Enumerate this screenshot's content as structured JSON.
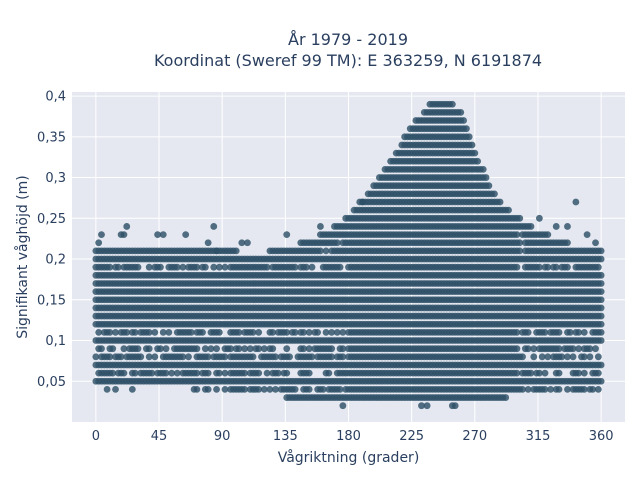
{
  "chart_data": {
    "type": "scatter",
    "title_lines": [
      "År 1979 - 2019",
      "Koordinat (Sweref 99 TM): E 363259, N 6191874"
    ],
    "xlabel": "Vågriktning (grader)",
    "ylabel": "Signifikant våghöjd (m)",
    "xlim": [
      -17,
      377
    ],
    "ylim": [
      0.0,
      0.405
    ],
    "xticks": [
      0,
      45,
      90,
      135,
      180,
      225,
      270,
      315,
      360
    ],
    "xtick_labels": [
      "0",
      "45",
      "90",
      "135",
      "180",
      "225",
      "270",
      "315",
      "360"
    ],
    "yticks": [
      0.05,
      0.1,
      0.15,
      0.2,
      0.25,
      0.3,
      0.35,
      0.4
    ],
    "ytick_labels": [
      "0,05",
      "0,1",
      "0,15",
      "0,2",
      "0,25",
      "0,3",
      "0,35",
      "0,4"
    ],
    "grid": true,
    "marker_color": "#2e5168",
    "plot_background": "#e5e8f0",
    "x_step_deg": 2,
    "y_step_m": 0.01,
    "upper_envelope": {
      "x": [
        0,
        20,
        45,
        90,
        110,
        135,
        155,
        175,
        185,
        200,
        215,
        225,
        235,
        240,
        250,
        260,
        265,
        270,
        280,
        290,
        300,
        315,
        330,
        345,
        360
      ],
      "y_max": [
        0.21,
        0.21,
        0.21,
        0.21,
        0.2,
        0.21,
        0.22,
        0.24,
        0.26,
        0.29,
        0.33,
        0.36,
        0.38,
        0.39,
        0.39,
        0.38,
        0.36,
        0.33,
        0.29,
        0.26,
        0.25,
        0.23,
        0.22,
        0.21,
        0.21
      ]
    },
    "lower_envelope": {
      "x": [
        0,
        130,
        140,
        155,
        175,
        200,
        225,
        250,
        270,
        285,
        300,
        360
      ],
      "y_min": [
        0.05,
        0.04,
        0.03,
        0.03,
        0.03,
        0.03,
        0.03,
        0.03,
        0.03,
        0.03,
        0.04,
        0.04
      ]
    },
    "sparse_rows": [
      0.04,
      0.06,
      0.08,
      0.09,
      0.11,
      0.19,
      0.21,
      0.22,
      0.23
    ],
    "outliers": [
      {
        "x": 2,
        "y": 0.22
      },
      {
        "x": 4,
        "y": 0.23
      },
      {
        "x": 8,
        "y": 0.04
      },
      {
        "x": 14,
        "y": 0.04
      },
      {
        "x": 18,
        "y": 0.23
      },
      {
        "x": 20,
        "y": 0.23
      },
      {
        "x": 22,
        "y": 0.24
      },
      {
        "x": 26,
        "y": 0.04
      },
      {
        "x": 44,
        "y": 0.23
      },
      {
        "x": 48,
        "y": 0.23
      },
      {
        "x": 64,
        "y": 0.23
      },
      {
        "x": 80,
        "y": 0.22
      },
      {
        "x": 84,
        "y": 0.24
      },
      {
        "x": 86,
        "y": 0.21
      },
      {
        "x": 104,
        "y": 0.22
      },
      {
        "x": 108,
        "y": 0.22
      },
      {
        "x": 136,
        "y": 0.23
      },
      {
        "x": 160,
        "y": 0.24
      },
      {
        "x": 232,
        "y": 0.02
      },
      {
        "x": 236,
        "y": 0.02
      },
      {
        "x": 254,
        "y": 0.02
      },
      {
        "x": 256,
        "y": 0.02
      },
      {
        "x": 176,
        "y": 0.02
      },
      {
        "x": 190,
        "y": 0.27
      },
      {
        "x": 316,
        "y": 0.25
      },
      {
        "x": 328,
        "y": 0.24
      },
      {
        "x": 336,
        "y": 0.24
      },
      {
        "x": 342,
        "y": 0.27
      },
      {
        "x": 350,
        "y": 0.23
      },
      {
        "x": 356,
        "y": 0.22
      }
    ]
  }
}
